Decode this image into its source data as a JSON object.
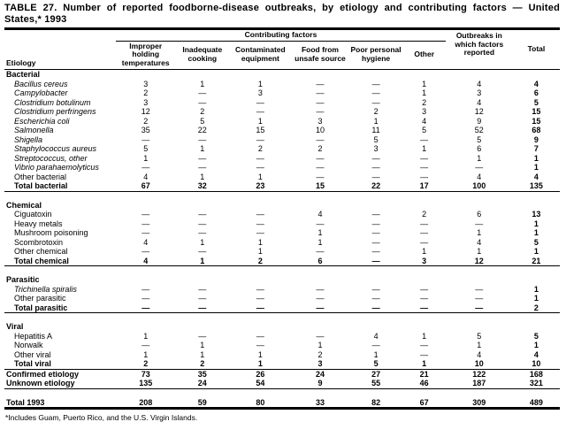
{
  "title": {
    "line1": "TABLE 27. Number of reported foodborne-disease outbreaks, by etiology and contributing factors — United",
    "line2": "States,* 1993"
  },
  "table": {
    "header": {
      "etiology": "Etiology",
      "contributing_factors": "Contributing factors",
      "factor_columns": [
        "Improper holding temperatures",
        "Inadequate cooking",
        "Contaminated equipment",
        "Food from unsafe source",
        "Poor personal hygiene",
        "Other"
      ],
      "outbreaks_reported": "Outbreaks in which factors reported",
      "total": "Total"
    },
    "rows": [
      {
        "type": "section",
        "label": "Bacterial"
      },
      {
        "type": "item",
        "italic": true,
        "indent": true,
        "label": "Bacillus cereus",
        "values": [
          "3",
          "1",
          "1",
          "—",
          "—",
          "1",
          "4",
          "4"
        ]
      },
      {
        "type": "item",
        "italic": true,
        "indent": true,
        "label": "Campylobacter",
        "values": [
          "2",
          "—",
          "3",
          "—",
          "—",
          "1",
          "3",
          "6"
        ]
      },
      {
        "type": "item",
        "italic": true,
        "indent": true,
        "label": "Clostridium botulinum",
        "values": [
          "3",
          "—",
          "—",
          "—",
          "—",
          "2",
          "4",
          "5"
        ]
      },
      {
        "type": "item",
        "italic": true,
        "indent": true,
        "label": "Clostridium perfringens",
        "values": [
          "12",
          "2",
          "—",
          "—",
          "2",
          "3",
          "12",
          "15"
        ]
      },
      {
        "type": "item",
        "italic": true,
        "indent": true,
        "label": "Escherichia coli",
        "values": [
          "2",
          "5",
          "1",
          "3",
          "1",
          "4",
          "9",
          "15"
        ]
      },
      {
        "type": "item",
        "italic": true,
        "indent": true,
        "label": "Salmonella",
        "values": [
          "35",
          "22",
          "15",
          "10",
          "11",
          "5",
          "52",
          "68"
        ]
      },
      {
        "type": "item",
        "italic": true,
        "indent": true,
        "label": "Shigella",
        "values": [
          "—",
          "—",
          "—",
          "—",
          "5",
          "—",
          "5",
          "9"
        ]
      },
      {
        "type": "item",
        "italic": true,
        "indent": true,
        "label": "Staphylococcus aureus",
        "values": [
          "5",
          "1",
          "2",
          "2",
          "3",
          "1",
          "6",
          "7"
        ]
      },
      {
        "type": "item",
        "italic": true,
        "indent": true,
        "label": "Streptococcus, other",
        "values": [
          "1",
          "—",
          "—",
          "—",
          "—",
          "—",
          "1",
          "1"
        ]
      },
      {
        "type": "item",
        "italic": true,
        "indent": true,
        "label": "Vibrio parahaemolyticus",
        "values": [
          "—",
          "—",
          "—",
          "—",
          "—",
          "—",
          "—",
          "1"
        ]
      },
      {
        "type": "item",
        "indent": true,
        "label": "Other bacterial",
        "values": [
          "4",
          "1",
          "1",
          "—",
          "—",
          "—",
          "4",
          "4"
        ]
      },
      {
        "type": "total",
        "indent": true,
        "label": "Total bacterial",
        "values": [
          "67",
          "32",
          "23",
          "15",
          "22",
          "17",
          "100",
          "135"
        ],
        "rule_after": true
      },
      {
        "type": "section",
        "label": "Chemical",
        "gap_before": true
      },
      {
        "type": "item",
        "indent": true,
        "label": "Ciguatoxin",
        "values": [
          "—",
          "—",
          "—",
          "4",
          "—",
          "2",
          "6",
          "13"
        ]
      },
      {
        "type": "item",
        "indent": true,
        "label": "Heavy metals",
        "values": [
          "—",
          "—",
          "—",
          "—",
          "—",
          "—",
          "—",
          "1"
        ]
      },
      {
        "type": "item",
        "indent": true,
        "label": "Mushroom poisoning",
        "values": [
          "—",
          "—",
          "—",
          "1",
          "—",
          "—",
          "1",
          "1"
        ]
      },
      {
        "type": "item",
        "indent": true,
        "label": "Scombrotoxin",
        "values": [
          "4",
          "1",
          "1",
          "1",
          "—",
          "—",
          "4",
          "5"
        ]
      },
      {
        "type": "item",
        "indent": true,
        "label": "Other chemical",
        "values": [
          "—",
          "—",
          "1",
          "—",
          "—",
          "1",
          "1",
          "1"
        ]
      },
      {
        "type": "total",
        "indent": true,
        "label": "Total chemical",
        "values": [
          "4",
          "1",
          "2",
          "6",
          "—",
          "3",
          "12",
          "21"
        ],
        "rule_after": true
      },
      {
        "type": "section",
        "label": "Parasitic",
        "gap_before": true
      },
      {
        "type": "item",
        "italic": true,
        "indent": true,
        "label": "Trichinella spiralis",
        "values": [
          "—",
          "—",
          "—",
          "—",
          "—",
          "—",
          "—",
          "1"
        ]
      },
      {
        "type": "item",
        "indent": true,
        "label": "Other parasitic",
        "values": [
          "—",
          "—",
          "—",
          "—",
          "—",
          "—",
          "—",
          "1"
        ]
      },
      {
        "type": "total",
        "indent": true,
        "label": "Total parasitic",
        "values": [
          "—",
          "—",
          "—",
          "—",
          "—",
          "—",
          "—",
          "2"
        ],
        "rule_after": true
      },
      {
        "type": "section",
        "label": "Viral",
        "gap_before": true
      },
      {
        "type": "item",
        "indent": true,
        "label": "Hepatitis A",
        "values": [
          "1",
          "—",
          "—",
          "—",
          "4",
          "1",
          "5",
          "5"
        ]
      },
      {
        "type": "item",
        "indent": true,
        "label": "Norwalk",
        "values": [
          "—",
          "1",
          "—",
          "1",
          "—",
          "—",
          "1",
          "1"
        ]
      },
      {
        "type": "item",
        "indent": true,
        "label": "Other viral",
        "values": [
          "1",
          "1",
          "1",
          "2",
          "1",
          "—",
          "4",
          "4"
        ]
      },
      {
        "type": "total",
        "indent": true,
        "label": "Total viral",
        "values": [
          "2",
          "2",
          "1",
          "3",
          "5",
          "1",
          "10",
          "10"
        ],
        "rule_after": true
      },
      {
        "type": "summary",
        "label": "Confirmed etiology",
        "values": [
          "73",
          "35",
          "26",
          "24",
          "27",
          "21",
          "122",
          "168"
        ]
      },
      {
        "type": "summary",
        "label": "Unknown etiology",
        "values": [
          "135",
          "24",
          "54",
          "9",
          "55",
          "46",
          "187",
          "321"
        ],
        "rule_after": true
      },
      {
        "type": "grand",
        "label": "Total 1993",
        "values": [
          "208",
          "59",
          "80",
          "33",
          "82",
          "67",
          "309",
          "489"
        ],
        "gap_before": true,
        "thick_after": true
      }
    ]
  },
  "footnote": "*Includes Guam, Puerto Rico, and the U.S. Virgin Islands."
}
